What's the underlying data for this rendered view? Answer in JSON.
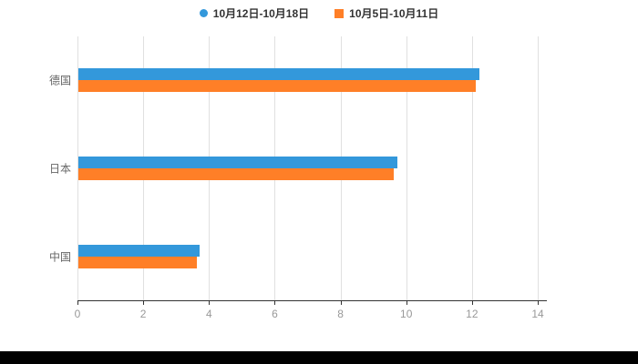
{
  "chart_data": {
    "type": "bar",
    "orientation": "horizontal",
    "title": "",
    "categories": [
      "德国",
      "日本",
      "中国"
    ],
    "series": [
      {
        "name": "10月12日-10月18日",
        "color": "#3398DB",
        "marker": "circle",
        "values": [
          12.2,
          9.7,
          3.7
        ]
      },
      {
        "name": "10月5日-10月11日",
        "color": "#FF7F27",
        "marker": "square",
        "values": [
          12.1,
          9.6,
          3.6
        ]
      }
    ],
    "xlim": [
      0,
      14
    ],
    "x_ticks": [
      0,
      2,
      4,
      6,
      8,
      10,
      12,
      14
    ],
    "grid": true,
    "legend_position": "top",
    "colors": {
      "grid": "#e0e0e0",
      "axis": "#333333",
      "tick_label": "#999999",
      "category_label": "#666666",
      "legend_text": "#333333",
      "background": "#ffffff",
      "letterbox": "#000000"
    }
  }
}
